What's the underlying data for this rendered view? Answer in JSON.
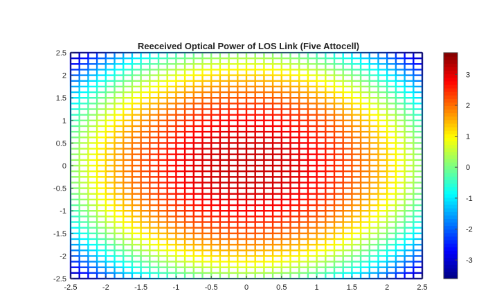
{
  "chart_data": {
    "type": "heatmap",
    "title": "Reeceived Optical Power of LOS Link (Five Attocell)",
    "xlabel": "",
    "ylabel": "",
    "xlim": [
      -2.5,
      2.5
    ],
    "ylim": [
      -2.5,
      2.5
    ],
    "x_ticks": [
      "-2.5",
      "-2",
      "-1.5",
      "-1",
      "-0.5",
      "0",
      "0.5",
      "1",
      "1.5",
      "2",
      "2.5"
    ],
    "y_ticks": [
      "2.5",
      "2",
      "1.5",
      "1",
      "0.5",
      "0",
      "-0.5",
      "-1",
      "-1.5",
      "-2",
      "-2.5"
    ],
    "colorbar": {
      "colormap": "jet",
      "range": [
        -3.6,
        3.7
      ],
      "tick_labels": [
        "3",
        "2",
        "1",
        "0",
        "-1",
        "-2",
        "-3"
      ]
    },
    "grid": "mesh",
    "value_estimates": {
      "room_corners": -3.5,
      "room_center": 3.2,
      "central_region_peak": 3.7
    }
  }
}
